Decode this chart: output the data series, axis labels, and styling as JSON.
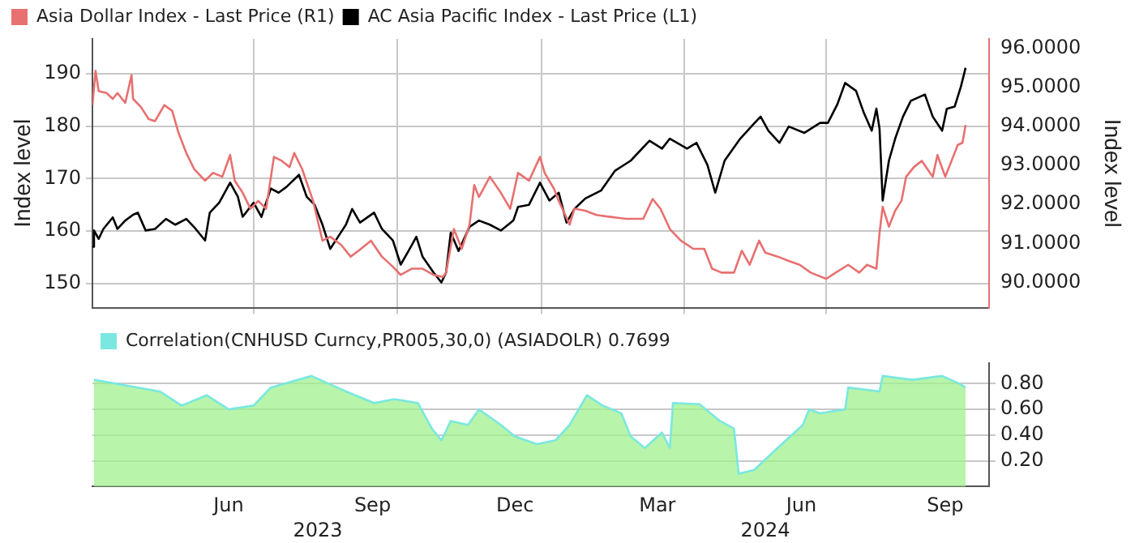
{
  "chart_data": [
    {
      "type": "line",
      "xlim": [
        "2023-03-20",
        "2024-10-13"
      ],
      "xticks": [
        {
          "value": "2023-07-01",
          "label": null
        },
        {
          "value": "2023-10-01",
          "label": null
        },
        {
          "value": "2024-01-01",
          "label": null
        },
        {
          "value": "2024-04-01",
          "label": null
        },
        {
          "value": "2024-07-01",
          "label": null
        }
      ],
      "ylim": [
        145.4,
        196.6
      ],
      "yticks": [
        150,
        160,
        170,
        180,
        190
      ],
      "ylabel": "Index level",
      "y2lim": [
        89.35,
        96.25
      ],
      "y2ticks": [
        {
          "value": 90,
          "label": "90.0000"
        },
        {
          "value": 91,
          "label": "91.0000"
        },
        {
          "value": 92,
          "label": "92.0000"
        },
        {
          "value": 93,
          "label": "93.0000"
        },
        {
          "value": 94,
          "label": "94.0000"
        },
        {
          "value": 95,
          "label": "95.0000"
        },
        {
          "value": 96,
          "label": "96.0000"
        }
      ],
      "y2label": "Index level",
      "grid": true,
      "legend": "top left",
      "tick_labels": "y",
      "marker": "none",
      "series": [
        {
          "name": "Asia Dollar Index - Last Price (R1)",
          "color": "#e87070",
          "axis": "y2",
          "x": [
            "2023-03-20",
            "2023-03-22",
            "2023-03-24",
            "2023-03-29",
            "2023-04-02",
            "2023-04-05",
            "2023-04-10",
            "2023-04-14",
            "2023-04-15",
            "2023-04-20",
            "2023-04-25",
            "2023-04-29",
            "2023-05-05",
            "2023-05-10",
            "2023-05-14",
            "2023-05-19",
            "2023-05-24",
            "2023-05-31",
            "2023-06-05",
            "2023-06-11",
            "2023-06-16",
            "2023-06-19",
            "2023-06-24",
            "2023-06-29",
            "2023-07-04",
            "2023-07-09",
            "2023-07-14",
            "2023-07-19",
            "2023-07-24",
            "2023-07-27",
            "2023-08-01",
            "2023-08-08",
            "2023-08-14",
            "2023-08-19",
            "2023-08-26",
            "2023-09-01",
            "2023-09-06",
            "2023-09-14",
            "2023-09-21",
            "2023-09-28",
            "2023-10-03",
            "2023-10-10",
            "2023-10-17",
            "2023-10-24",
            "2023-10-30",
            "2023-11-01",
            "2023-11-06",
            "2023-11-11",
            "2023-11-16",
            "2023-11-19",
            "2023-11-22",
            "2023-11-29",
            "2023-12-06",
            "2023-12-12",
            "2023-12-17",
            "2023-12-24",
            "2023-12-31",
            "2024-01-03",
            "2024-01-09",
            "2024-01-12",
            "2024-01-19",
            "2024-01-22",
            "2024-01-29",
            "2024-02-05",
            "2024-02-14",
            "2024-02-24",
            "2024-03-06",
            "2024-03-12",
            "2024-03-17",
            "2024-03-23",
            "2024-03-30",
            "2024-04-07",
            "2024-04-14",
            "2024-04-19",
            "2024-04-25",
            "2024-05-03",
            "2024-05-08",
            "2024-05-13",
            "2024-05-19",
            "2024-05-23",
            "2024-05-31",
            "2024-06-07",
            "2024-06-14",
            "2024-06-21",
            "2024-07-01",
            "2024-07-07",
            "2024-07-15",
            "2024-07-22",
            "2024-07-27",
            "2024-08-02",
            "2024-08-04",
            "2024-08-06",
            "2024-08-10",
            "2024-08-14",
            "2024-08-18",
            "2024-08-21",
            "2024-08-26",
            "2024-08-31",
            "2024-09-07",
            "2024-09-10",
            "2024-09-15",
            "2024-09-20",
            "2024-09-23",
            "2024-09-26",
            "2024-09-28"
          ],
          "values": [
            94.55,
            95.43,
            94.91,
            94.86,
            94.71,
            94.86,
            94.61,
            95.32,
            94.71,
            94.5,
            94.19,
            94.14,
            94.55,
            94.4,
            93.84,
            93.32,
            92.91,
            92.61,
            92.81,
            92.71,
            93.27,
            92.61,
            92.3,
            91.89,
            92.09,
            91.89,
            93.22,
            93.12,
            92.96,
            93.32,
            92.91,
            92.09,
            91.07,
            91.17,
            90.96,
            90.66,
            90.81,
            91.07,
            90.66,
            90.4,
            90.19,
            90.35,
            90.35,
            90.19,
            90.14,
            90.25,
            91.37,
            90.86,
            91.48,
            92.5,
            92.19,
            92.71,
            92.3,
            91.89,
            92.81,
            92.61,
            93.22,
            92.81,
            92.4,
            92.09,
            91.48,
            91.89,
            91.84,
            91.73,
            91.68,
            91.63,
            91.63,
            92.14,
            91.89,
            91.37,
            91.07,
            90.86,
            90.86,
            90.35,
            90.25,
            90.25,
            90.81,
            90.45,
            91.07,
            90.76,
            90.66,
            90.55,
            90.45,
            90.25,
            90.09,
            90.25,
            90.45,
            90.25,
            90.45,
            90.35,
            91.27,
            91.94,
            91.43,
            91.84,
            92.09,
            92.71,
            92.96,
            93.12,
            92.71,
            93.27,
            92.71,
            93.22,
            93.53,
            93.58,
            94.04
          ]
        },
        {
          "name": "AC Asia Pacific Index - Last Price (L1)",
          "color": "#000000",
          "x": [
            "2023-03-20",
            "2023-03-21",
            "2023-03-24",
            "2023-03-27",
            "2023-04-02",
            "2023-04-05",
            "2023-04-10",
            "2023-04-15",
            "2023-04-18",
            "2023-04-23",
            "2023-04-29",
            "2023-05-06",
            "2023-05-12",
            "2023-05-19",
            "2023-05-25",
            "2023-05-31",
            "2023-06-03",
            "2023-06-09",
            "2023-06-16",
            "2023-06-21",
            "2023-06-24",
            "2023-07-01",
            "2023-07-06",
            "2023-07-12",
            "2023-07-17",
            "2023-07-22",
            "2023-07-30",
            "2023-08-04",
            "2023-08-09",
            "2023-08-14",
            "2023-08-19",
            "2023-08-24",
            "2023-08-29",
            "2023-09-02",
            "2023-09-07",
            "2023-09-16",
            "2023-09-21",
            "2023-09-28",
            "2023-10-03",
            "2023-10-08",
            "2023-10-13",
            "2023-10-17",
            "2023-10-24",
            "2023-10-29",
            "2023-11-01",
            "2023-11-04",
            "2023-11-09",
            "2023-11-16",
            "2023-11-22",
            "2023-11-29",
            "2023-12-06",
            "2023-12-14",
            "2023-12-17",
            "2023-12-24",
            "2023-12-31",
            "2024-01-06",
            "2024-01-12",
            "2024-01-17",
            "2024-01-22",
            "2024-01-29",
            "2024-02-08",
            "2024-02-17",
            "2024-02-27",
            "2024-03-10",
            "2024-03-18",
            "2024-03-23",
            "2024-04-03",
            "2024-04-09",
            "2024-04-16",
            "2024-04-21",
            "2024-04-27",
            "2024-05-07",
            "2024-05-15",
            "2024-05-20",
            "2024-05-25",
            "2024-06-01",
            "2024-06-07",
            "2024-06-17",
            "2024-06-27",
            "2024-07-02",
            "2024-07-08",
            "2024-07-13",
            "2024-07-20",
            "2024-07-25",
            "2024-07-30",
            "2024-08-02",
            "2024-08-04",
            "2024-08-06",
            "2024-08-10",
            "2024-08-14",
            "2024-08-19",
            "2024-08-24",
            "2024-09-02",
            "2024-09-07",
            "2024-09-13",
            "2024-09-16",
            "2024-09-21",
            "2024-09-25",
            "2024-09-28"
          ],
          "values": [
            157,
            160.1,
            158.5,
            160.4,
            162.6,
            160.4,
            162,
            163.1,
            163.5,
            160.1,
            160.4,
            162.3,
            161.2,
            162.3,
            160.4,
            158.2,
            163.5,
            165.4,
            169.2,
            166.5,
            162.7,
            165.4,
            162.7,
            168.1,
            167.3,
            168.4,
            170.7,
            166.5,
            165,
            161.2,
            156.6,
            158.9,
            161.2,
            164.2,
            161.6,
            163.5,
            160.4,
            158.2,
            153.6,
            156.2,
            158.9,
            155.1,
            152.1,
            150.2,
            152.1,
            159.7,
            156.2,
            160.8,
            162,
            161.2,
            160.1,
            162,
            164.6,
            165,
            169.2,
            165.8,
            167.3,
            161.6,
            164.2,
            166.2,
            167.7,
            171.5,
            173.4,
            177.2,
            175.7,
            177.6,
            175.7,
            176.8,
            172.6,
            167.3,
            173.4,
            177.6,
            180.2,
            181.8,
            179.1,
            176.8,
            179.9,
            178.7,
            180.6,
            180.6,
            184.1,
            188.2,
            186.7,
            182.5,
            179.1,
            183.3,
            179.5,
            165.8,
            173.4,
            177.6,
            181.8,
            184.8,
            186,
            181.8,
            179.1,
            183.3,
            183.7,
            187.5,
            191.1
          ]
        }
      ]
    },
    {
      "type": "area",
      "xlim": [
        "2023-03-20",
        "2024-10-13"
      ],
      "xticks": [
        {
          "value": "2023-06-15",
          "label": "Jun"
        },
        {
          "value": "2023-09-15",
          "label": "Sep"
        },
        {
          "value": "2023-12-15",
          "label": "Dec"
        },
        {
          "value": "2024-03-15",
          "label": "Mar"
        },
        {
          "value": "2024-06-15",
          "label": "Jun"
        },
        {
          "value": "2024-09-15",
          "label": "Sep"
        }
      ],
      "x2lim": [
        "2023-03-20",
        "2024-10-13"
      ],
      "x2ticks": [
        {
          "value": "2023-08-11",
          "label": "2023"
        },
        {
          "value": "2024-05-23",
          "label": "2024"
        }
      ],
      "y2lim": [
        0,
        0.96
      ],
      "y2ticks": [
        {
          "value": 0.2,
          "label": "0.20"
        },
        {
          "value": 0.4,
          "label": "0.40"
        },
        {
          "value": 0.6,
          "label": "0.60"
        },
        {
          "value": 0.8,
          "label": "0.80"
        }
      ],
      "grid": "y",
      "legend": "top left",
      "marker": "none",
      "series": [
        {
          "name": "Correlation(CNHUSD Curncy,PR005,30,0) (ASIADOLR) 0.7699",
          "color": "#7ae8e0",
          "axis": "y2",
          "x": [
            "2023-03-21",
            "2023-05-02",
            "2023-05-16",
            "2023-06-01",
            "2023-06-15",
            "2023-07-01",
            "2023-07-12",
            "2023-08-07",
            "2023-08-29",
            "2023-09-16",
            "2023-09-29",
            "2023-10-14",
            "2023-10-23",
            "2023-10-29",
            "2023-11-04",
            "2023-11-15",
            "2023-11-22",
            "2023-12-06",
            "2023-12-15",
            "2023-12-29",
            "2024-01-10",
            "2024-01-19",
            "2024-01-30",
            "2024-02-09",
            "2024-02-21",
            "2024-02-27",
            "2024-03-07",
            "2024-03-18",
            "2024-03-23",
            "2024-03-25",
            "2024-04-11",
            "2024-04-24",
            "2024-05-03",
            "2024-05-06",
            "2024-05-16",
            "2024-05-29",
            "2024-06-16",
            "2024-06-20",
            "2024-06-27",
            "2024-07-13",
            "2024-07-15",
            "2024-08-04",
            "2024-08-06",
            "2024-08-25",
            "2024-09-13",
            "2024-09-24",
            "2024-09-28"
          ],
          "values": [
            0.83,
            0.74,
            0.63,
            0.71,
            0.6,
            0.63,
            0.77,
            0.86,
            0.74,
            0.65,
            0.68,
            0.65,
            0.45,
            0.36,
            0.51,
            0.48,
            0.6,
            0.48,
            0.39,
            0.33,
            0.36,
            0.48,
            0.71,
            0.63,
            0.57,
            0.39,
            0.3,
            0.42,
            0.3,
            0.65,
            0.64,
            0.51,
            0.45,
            0.1,
            0.13,
            0.28,
            0.48,
            0.6,
            0.57,
            0.6,
            0.77,
            0.74,
            0.86,
            0.83,
            0.86,
            0.8,
            0.77
          ]
        }
      ]
    }
  ]
}
